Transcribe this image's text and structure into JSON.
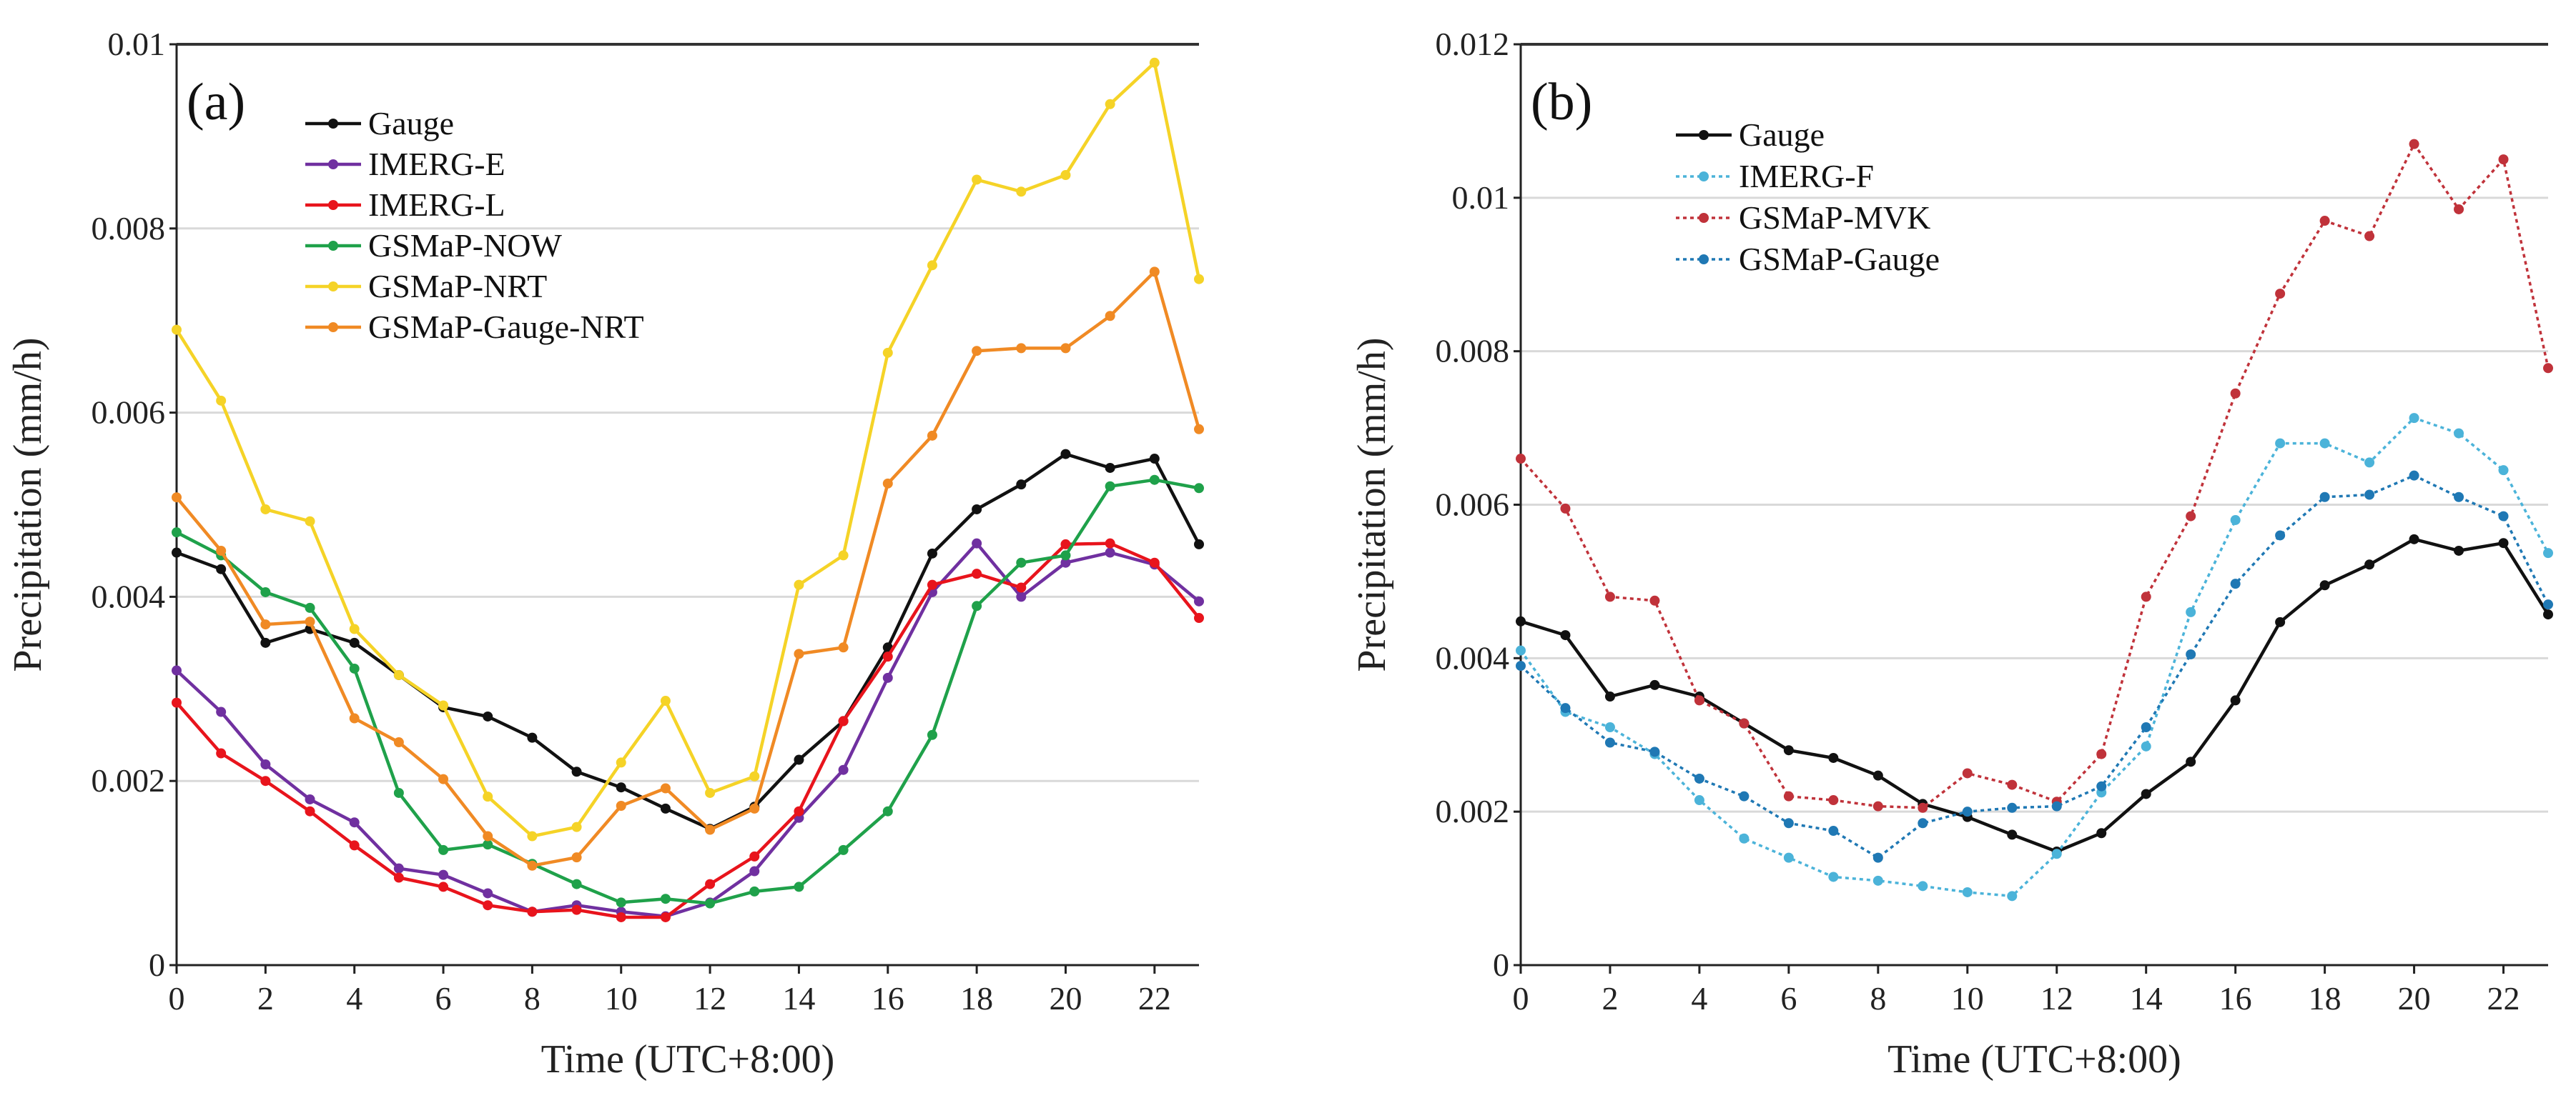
{
  "chart_data": [
    {
      "type": "line",
      "panel_label": "(a)",
      "xlabel": "Time (UTC+8:00)",
      "ylabel": "Precipitation (mm/h)",
      "xlim": [
        0,
        23
      ],
      "ylim": [
        0,
        0.01
      ],
      "xticks": [
        0,
        2,
        4,
        6,
        8,
        10,
        12,
        14,
        16,
        18,
        20,
        22
      ],
      "yticks": [
        0,
        0.002,
        0.004,
        0.006,
        0.008,
        0.01
      ],
      "ytick_labels": [
        "0",
        "0.002",
        "0.004",
        "0.006",
        "0.008",
        "0.01"
      ],
      "grid": "horizontal",
      "legend_position": "top-left",
      "x": [
        0,
        1,
        2,
        3,
        4,
        5,
        6,
        7,
        8,
        9,
        10,
        11,
        12,
        13,
        14,
        15,
        16,
        17,
        18,
        19,
        20,
        21,
        22,
        23
      ],
      "series": [
        {
          "name": "Gauge",
          "color": "#111111",
          "dotted": false,
          "values": [
            0.00448,
            0.0043,
            0.0035,
            0.00365,
            0.0035,
            0.00315,
            0.0028,
            0.0027,
            0.00247,
            0.0021,
            0.00193,
            0.0017,
            0.00148,
            0.00172,
            0.00223,
            0.00265,
            0.00345,
            0.00447,
            0.00495,
            0.00522,
            0.00555,
            0.0054,
            0.0055,
            0.00457
          ]
        },
        {
          "name": "IMERG-E",
          "color": "#7030a0",
          "dotted": false,
          "values": [
            0.0032,
            0.00275,
            0.00218,
            0.0018,
            0.00155,
            0.00105,
            0.00098,
            0.00078,
            0.00058,
            0.00065,
            0.00058,
            0.00053,
            0.00068,
            0.00102,
            0.0016,
            0.00212,
            0.00312,
            0.00405,
            0.00458,
            0.004,
            0.00437,
            0.00448,
            0.00435,
            0.00395
          ]
        },
        {
          "name": "IMERG-L",
          "color": "#e8141c",
          "dotted": false,
          "values": [
            0.00285,
            0.0023,
            0.002,
            0.00167,
            0.0013,
            0.00095,
            0.00085,
            0.00065,
            0.00058,
            0.0006,
            0.00052,
            0.00052,
            0.00088,
            0.00118,
            0.00167,
            0.00265,
            0.00335,
            0.00413,
            0.00425,
            0.0041,
            0.00457,
            0.00458,
            0.00437,
            0.00377
          ]
        },
        {
          "name": "GSMaP-NOW",
          "color": "#1fa14a",
          "dotted": false,
          "values": [
            0.0047,
            0.00445,
            0.00405,
            0.00388,
            0.00322,
            0.00187,
            0.00125,
            0.00131,
            0.0011,
            0.00088,
            0.00068,
            0.00072,
            0.00067,
            0.0008,
            0.00085,
            0.00125,
            0.00167,
            0.0025,
            0.0039,
            0.00437,
            0.00445,
            0.0052,
            0.00527,
            0.00518
          ]
        },
        {
          "name": "GSMaP-NRT",
          "color": "#f5d327",
          "dotted": false,
          "values": [
            0.0069,
            0.00613,
            0.00495,
            0.00482,
            0.00365,
            0.00315,
            0.00282,
            0.00183,
            0.0014,
            0.0015,
            0.0022,
            0.00287,
            0.00187,
            0.00205,
            0.00413,
            0.00445,
            0.00665,
            0.0076,
            0.00853,
            0.0084,
            0.00858,
            0.00935,
            0.0098,
            0.00745
          ]
        },
        {
          "name": "GSMaP-Gauge-NRT",
          "color": "#f08a24",
          "dotted": false,
          "values": [
            0.00508,
            0.0045,
            0.0037,
            0.00373,
            0.00268,
            0.00242,
            0.00202,
            0.0014,
            0.00108,
            0.00117,
            0.00173,
            0.00192,
            0.00147,
            0.0017,
            0.00338,
            0.00345,
            0.00523,
            0.00575,
            0.00667,
            0.0067,
            0.0067,
            0.00705,
            0.00753,
            0.00582
          ]
        }
      ]
    },
    {
      "type": "line",
      "panel_label": "(b)",
      "xlabel": "Time (UTC+8:00)",
      "ylabel": "Precipitation (mm/h)",
      "xlim": [
        0,
        23
      ],
      "ylim": [
        0,
        0.012
      ],
      "xticks": [
        0,
        2,
        4,
        6,
        8,
        10,
        12,
        14,
        16,
        18,
        20,
        22
      ],
      "yticks": [
        0,
        0.002,
        0.004,
        0.006,
        0.008,
        0.01,
        0.012
      ],
      "ytick_labels": [
        "0",
        "0.002",
        "0.004",
        "0.006",
        "0.008",
        "0.01",
        "0.012"
      ],
      "grid": "horizontal",
      "legend_position": "top-left",
      "x": [
        0,
        1,
        2,
        3,
        4,
        5,
        6,
        7,
        8,
        9,
        10,
        11,
        12,
        13,
        14,
        15,
        16,
        17,
        18,
        19,
        20,
        21,
        22,
        23
      ],
      "series": [
        {
          "name": "Gauge",
          "color": "#111111",
          "dotted": false,
          "values": [
            0.00448,
            0.0043,
            0.0035,
            0.00365,
            0.0035,
            0.00315,
            0.0028,
            0.0027,
            0.00247,
            0.0021,
            0.00193,
            0.0017,
            0.00148,
            0.00172,
            0.00223,
            0.00265,
            0.00345,
            0.00447,
            0.00495,
            0.00522,
            0.00555,
            0.0054,
            0.0055,
            0.00457
          ]
        },
        {
          "name": "IMERG-F",
          "color": "#4bb3d9",
          "dotted": true,
          "values": [
            0.0041,
            0.0033,
            0.0031,
            0.00275,
            0.00215,
            0.00165,
            0.0014,
            0.00115,
            0.0011,
            0.00103,
            0.00095,
            0.0009,
            0.00145,
            0.00225,
            0.00285,
            0.0046,
            0.0058,
            0.0068,
            0.0068,
            0.00655,
            0.00713,
            0.00693,
            0.00645,
            0.00537
          ]
        },
        {
          "name": "GSMaP-MVK",
          "color": "#c0323a",
          "dotted": true,
          "values": [
            0.0066,
            0.00595,
            0.0048,
            0.00475,
            0.00345,
            0.00315,
            0.0022,
            0.00215,
            0.00207,
            0.00205,
            0.0025,
            0.00235,
            0.00213,
            0.00275,
            0.0048,
            0.00585,
            0.00745,
            0.00875,
            0.0097,
            0.0095,
            0.0107,
            0.00985,
            0.0105,
            0.00778
          ]
        },
        {
          "name": "GSMaP-Gauge",
          "color": "#1f78b4",
          "dotted": true,
          "values": [
            0.0039,
            0.00335,
            0.0029,
            0.00278,
            0.00243,
            0.0022,
            0.00185,
            0.00175,
            0.0014,
            0.00185,
            0.002,
            0.00205,
            0.00207,
            0.00233,
            0.0031,
            0.00405,
            0.00497,
            0.0056,
            0.0061,
            0.00613,
            0.00638,
            0.0061,
            0.00585,
            0.0047
          ]
        }
      ]
    }
  ]
}
